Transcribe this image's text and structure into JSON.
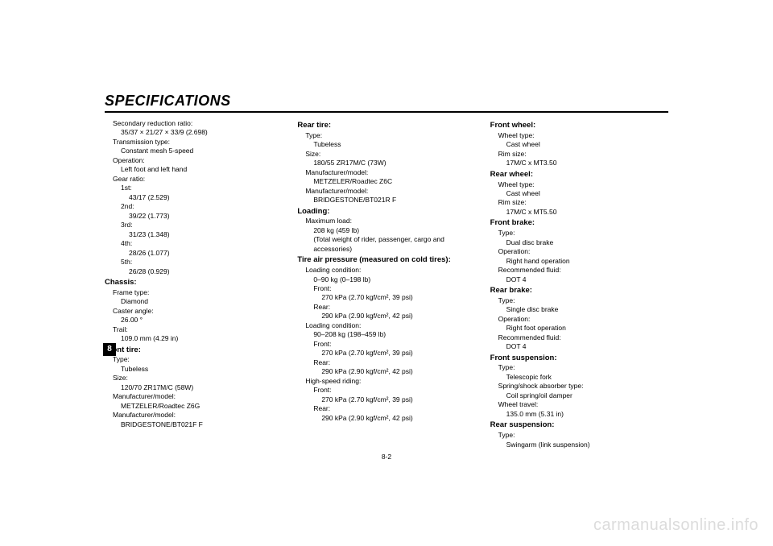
{
  "heading": "SPECIFICATIONS",
  "page_tab": "8",
  "page_number": "8-2",
  "watermark": "carmanualsonline.info",
  "col1": {
    "sec_red_lbl": "Secondary reduction ratio:",
    "sec_red_val": "35/37 × 21/27 × 33/9 (2.698)",
    "trans_lbl": "Transmission type:",
    "trans_val": "Constant mesh 5-speed",
    "op_lbl": "Operation:",
    "op_val": "Left foot and left hand",
    "gear_lbl": "Gear ratio:",
    "g1_lbl": "1st:",
    "g1_val": "43/17 (2.529)",
    "g2_lbl": "2nd:",
    "g2_val": "39/22 (1.773)",
    "g3_lbl": "3rd:",
    "g3_val": "31/23 (1.348)",
    "g4_lbl": "4th:",
    "g4_val": "28/26 (1.077)",
    "g5_lbl": "5th:",
    "g5_val": "26/28 (0.929)",
    "chassis": "Chassis:",
    "ft_lbl": "Frame type:",
    "ft_val": "Diamond",
    "ca_lbl": "Caster angle:",
    "ca_val": "26.00 °",
    "tr_lbl": "Trail:",
    "tr_val": "109.0 mm (4.29 in)",
    "front_tire": "Front tire:",
    "ftt_lbl": "Type:",
    "ftt_val": "Tubeless",
    "fts_lbl": "Size:",
    "fts_val": "120/70 ZR17M/C (58W)",
    "ftm1_lbl": "Manufacturer/model:",
    "ftm1_val": "METZELER/Roadtec Z6G",
    "ftm2_lbl": "Manufacturer/model:",
    "ftm2_val": "BRIDGESTONE/BT021F F"
  },
  "col2": {
    "rear_tire": "Rear tire:",
    "rtt_lbl": "Type:",
    "rtt_val": "Tubeless",
    "rts_lbl": "Size:",
    "rts_val": "180/55 ZR17M/C (73W)",
    "rtm1_lbl": "Manufacturer/model:",
    "rtm1_val": "METZELER/Roadtec Z6C",
    "rtm2_lbl": "Manufacturer/model:",
    "rtm2_val": "BRIDGESTONE/BT021R F",
    "loading": "Loading:",
    "ml_lbl": "Maximum load:",
    "ml_val": "208 kg (459 lb)",
    "ml_note": "(Total weight of rider, passenger, cargo and accessories)",
    "tap": "Tire air pressure (measured on cold tires):",
    "lc1_lbl": "Loading condition:",
    "lc1_val": "0–90 kg (0–198 lb)",
    "lc1_f_lbl": "Front:",
    "lc1_f_val": "270 kPa (2.70 kgf/cm², 39 psi)",
    "lc1_r_lbl": "Rear:",
    "lc1_r_val": "290 kPa (2.90 kgf/cm², 42 psi)",
    "lc2_lbl": "Loading condition:",
    "lc2_val": "90–208 kg (198–459 lb)",
    "lc2_f_lbl": "Front:",
    "lc2_f_val": "270 kPa (2.70 kgf/cm², 39 psi)",
    "lc2_r_lbl": "Rear:",
    "lc2_r_val": "290 kPa (2.90 kgf/cm², 42 psi)",
    "hs_lbl": "High-speed riding:",
    "hs_f_lbl": "Front:",
    "hs_f_val": "270 kPa (2.70 kgf/cm², 39 psi)",
    "hs_r_lbl": "Rear:",
    "hs_r_val": "290 kPa (2.90 kgf/cm², 42 psi)"
  },
  "col3": {
    "fw": "Front wheel:",
    "fw_wt_lbl": "Wheel type:",
    "fw_wt_val": "Cast wheel",
    "fw_rs_lbl": "Rim size:",
    "fw_rs_val": "17M/C x MT3.50",
    "rw": "Rear wheel:",
    "rw_wt_lbl": "Wheel type:",
    "rw_wt_val": "Cast wheel",
    "rw_rs_lbl": "Rim size:",
    "rw_rs_val": "17M/C x MT5.50",
    "fb": "Front brake:",
    "fb_t_lbl": "Type:",
    "fb_t_val": "Dual disc brake",
    "fb_o_lbl": "Operation:",
    "fb_o_val": "Right hand operation",
    "fb_f_lbl": "Recommended fluid:",
    "fb_f_val": "DOT 4",
    "rb": "Rear brake:",
    "rb_t_lbl": "Type:",
    "rb_t_val": "Single disc brake",
    "rb_o_lbl": "Operation:",
    "rb_o_val": "Right foot operation",
    "rb_f_lbl": "Recommended fluid:",
    "rb_f_val": "DOT 4",
    "fs": "Front suspension:",
    "fs_t_lbl": "Type:",
    "fs_t_val": "Telescopic fork",
    "fs_s_lbl": "Spring/shock absorber type:",
    "fs_s_val": "Coil spring/oil damper",
    "fs_w_lbl": "Wheel travel:",
    "fs_w_val": "135.0 mm (5.31 in)",
    "rs": "Rear suspension:",
    "rs_t_lbl": "Type:",
    "rs_t_val": "Swingarm (link suspension)"
  }
}
